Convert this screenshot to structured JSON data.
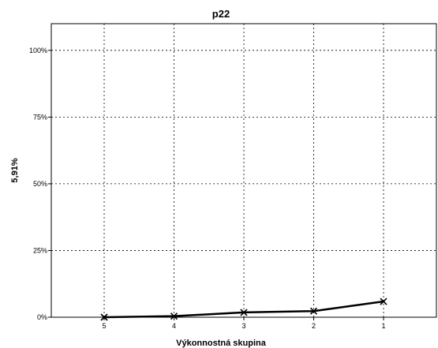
{
  "chart_data": {
    "type": "line",
    "title": "p22",
    "xlabel": "Výkonnostná skupina",
    "ylabel": "5,91%",
    "categories": [
      "5",
      "4",
      "3",
      "2",
      "1"
    ],
    "series": [
      {
        "values": [
          0.0,
          0.4,
          1.8,
          2.3,
          5.91
        ],
        "marker": "x",
        "color": "#000000"
      }
    ],
    "ylim": [
      0,
      110
    ],
    "yticks": [
      0,
      25,
      50,
      75,
      100
    ],
    "ytick_labels": [
      "0%",
      "25%",
      "50%",
      "75%",
      "100%"
    ],
    "grid": true
  }
}
